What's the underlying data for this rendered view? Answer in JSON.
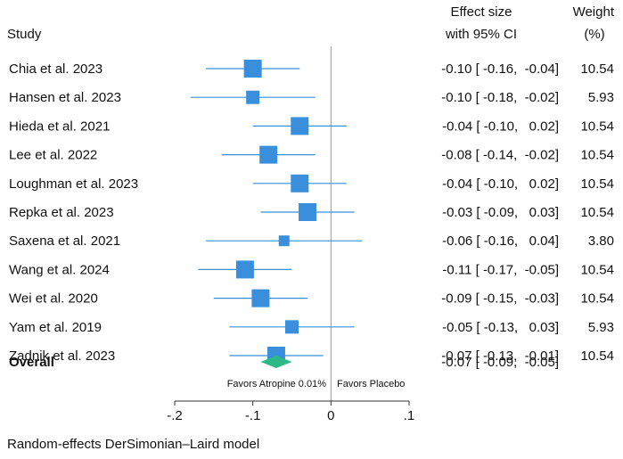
{
  "chart_data": {
    "type": "forest",
    "headers": {
      "study": "Study",
      "effect_line1": "Effect size",
      "effect_line2": "with 95% CI",
      "weight_line1": "Weight",
      "weight_line2": "(%)"
    },
    "studies": [
      {
        "name": "Chia et al. 2023",
        "es": -0.1,
        "lo": -0.16,
        "hi": -0.04,
        "ci_text": "-0.10 [ -0.16,  -0.04]",
        "weight": 10.54,
        "weight_text": "10.54"
      },
      {
        "name": "Hansen et al. 2023",
        "es": -0.1,
        "lo": -0.18,
        "hi": -0.02,
        "ci_text": "-0.10 [ -0.18,  -0.02]",
        "weight": 5.93,
        "weight_text": "5.93"
      },
      {
        "name": "Hieda et al. 2021",
        "es": -0.04,
        "lo": -0.1,
        "hi": 0.02,
        "ci_text": "-0.04 [ -0.10,   0.02]",
        "weight": 10.54,
        "weight_text": "10.54"
      },
      {
        "name": "Lee et al. 2022",
        "es": -0.08,
        "lo": -0.14,
        "hi": -0.02,
        "ci_text": "-0.08 [ -0.14,  -0.02]",
        "weight": 10.54,
        "weight_text": "10.54"
      },
      {
        "name": "Loughman et al. 2023",
        "es": -0.04,
        "lo": -0.1,
        "hi": 0.02,
        "ci_text": "-0.04 [ -0.10,   0.02]",
        "weight": 10.54,
        "weight_text": "10.54"
      },
      {
        "name": "Repka et al. 2023",
        "es": -0.03,
        "lo": -0.09,
        "hi": 0.03,
        "ci_text": "-0.03 [ -0.09,   0.03]",
        "weight": 10.54,
        "weight_text": "10.54"
      },
      {
        "name": "Saxena et al. 2021",
        "es": -0.06,
        "lo": -0.16,
        "hi": 0.04,
        "ci_text": "-0.06 [ -0.16,   0.04]",
        "weight": 3.8,
        "weight_text": "3.80"
      },
      {
        "name": "Wang et al. 2024",
        "es": -0.11,
        "lo": -0.17,
        "hi": -0.05,
        "ci_text": "-0.11 [ -0.17,  -0.05]",
        "weight": 10.54,
        "weight_text": "10.54"
      },
      {
        "name": "Wei et al. 2020",
        "es": -0.09,
        "lo": -0.15,
        "hi": -0.03,
        "ci_text": "-0.09 [ -0.15,  -0.03]",
        "weight": 10.54,
        "weight_text": "10.54"
      },
      {
        "name": "Yam et al. 2019",
        "es": -0.05,
        "lo": -0.13,
        "hi": 0.03,
        "ci_text": "-0.05 [ -0.13,   0.03]",
        "weight": 5.93,
        "weight_text": "5.93"
      },
      {
        "name": "Zadnik et al. 2023",
        "es": -0.07,
        "lo": -0.13,
        "hi": -0.01,
        "ci_text": "-0.07 [ -0.13,  -0.01]",
        "weight": 10.54,
        "weight_text": "10.54"
      }
    ],
    "overall": {
      "name": "Overall",
      "es": -0.07,
      "lo": -0.09,
      "hi": -0.05,
      "ci_text": "-0.07 [ -0.09,  -0.05]"
    },
    "xlim": [
      -0.2,
      0.1
    ],
    "xticks": [
      -0.2,
      -0.1,
      0,
      0.1
    ],
    "xtick_labels": [
      "-.2",
      "-.1",
      "0",
      ".1"
    ],
    "reference_line": 0,
    "favors_left": "Favors Atropine 0.01%",
    "favors_right": "Favors Placebo",
    "footnote": "Random-effects DerSimonian–Laird model",
    "colors": {
      "marker": "#3a8fdc",
      "ci_line": "#3a8fdc",
      "diamond": "#2db888",
      "axis": "#333333",
      "ref_line": "#999999"
    }
  }
}
